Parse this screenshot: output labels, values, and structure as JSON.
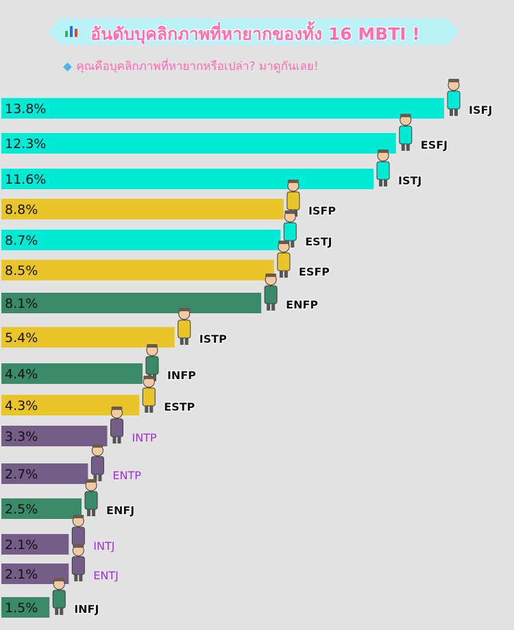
{
  "title": "อันดับบุคลิกภาพที่หายากของทั้ง 16 MBTI !",
  "subtitle": "คุณคือบุคลิกภาพที่หายากหรือเปล่า? มาดูกันเลย!",
  "icons": {
    "title": "bar-chart-icon",
    "subtitle": "gem-icon"
  },
  "colors": {
    "sentinel": "#00ebd6",
    "explorer": "#e9c52a",
    "diplomat": "#3a8a6a",
    "analyst": "#745d86",
    "label_dark": "#111111",
    "label_purple": "#9f2fd0",
    "background": "#e3e2e2",
    "title_pink": "#ff6fae"
  },
  "chart_data": {
    "type": "bar",
    "orientation": "horizontal",
    "title": "อันดับบุคลิกภาพที่หายากของทั้ง 16 MBTI !",
    "subtitle": "คุณคือบุคลิกภาพที่หายากหรือเปล่า? มาดูกันเลย!",
    "xlabel": "",
    "ylabel": "",
    "xlim": [
      0,
      13.8
    ],
    "grid": false,
    "legend": "none",
    "categories": [
      "ISFJ",
      "ESFJ",
      "ISTJ",
      "ISFP",
      "ESTJ",
      "ESFP",
      "ENFP",
      "ISTP",
      "INFP",
      "ESTP",
      "INTP",
      "ENTP",
      "ENFJ",
      "INTJ",
      "ENTJ",
      "INFJ"
    ],
    "values": [
      13.8,
      12.3,
      11.6,
      8.8,
      8.7,
      8.5,
      8.1,
      5.4,
      4.4,
      4.3,
      3.3,
      2.7,
      2.5,
      2.1,
      2.1,
      1.5
    ],
    "value_labels": [
      "13.8%",
      "12.3%",
      "11.6%",
      "8.8%",
      "8.7%",
      "8.5%",
      "8.1%",
      "5.4%",
      "4.4%",
      "4.3%",
      "3.3%",
      "2.7%",
      "2.5%",
      "2.1%",
      "2.1%",
      "1.5%"
    ],
    "groups": [
      "sentinel",
      "sentinel",
      "sentinel",
      "explorer",
      "sentinel",
      "explorer",
      "diplomat",
      "explorer",
      "diplomat",
      "explorer",
      "analyst",
      "analyst",
      "diplomat",
      "analyst",
      "analyst",
      "diplomat"
    ]
  }
}
